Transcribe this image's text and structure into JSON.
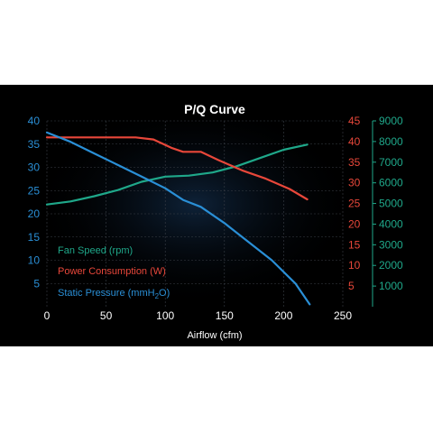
{
  "chart_data": {
    "type": "line",
    "title": "P/Q Curve",
    "xlabel": "Airflow (cfm)",
    "xlim": [
      0,
      250
    ],
    "x_ticks": [
      0,
      50,
      100,
      150,
      200,
      250
    ],
    "grid": true,
    "legend_position": "bottom-left",
    "axes": {
      "left": {
        "ylim": [
          0,
          40
        ],
        "ticks": [
          5,
          10,
          15,
          20,
          25,
          30,
          35,
          40
        ],
        "color": "#2a8fd6"
      },
      "mid": {
        "ylim": [
          0,
          45
        ],
        "ticks": [
          5,
          10,
          15,
          20,
          25,
          30,
          35,
          40,
          45
        ],
        "color": "#e8473a"
      },
      "right": {
        "ylim": [
          0,
          9000
        ],
        "ticks": [
          1000,
          2000,
          3000,
          4000,
          5000,
          6000,
          7000,
          8000,
          9000
        ],
        "color": "#1fa88a"
      }
    },
    "series": [
      {
        "name": "Fan Speed (rpm)",
        "axis": "right",
        "color": "#1fa88a",
        "x": [
          0,
          20,
          40,
          60,
          80,
          100,
          120,
          140,
          160,
          180,
          200,
          220
        ],
        "values": [
          4950,
          5100,
          5350,
          5650,
          6050,
          6300,
          6350,
          6500,
          6800,
          7200,
          7600,
          7850
        ]
      },
      {
        "name": "Power Consumption (W)",
        "axis": "mid",
        "color": "#e8473a",
        "x": [
          0,
          20,
          40,
          60,
          75,
          90,
          105,
          115,
          130,
          145,
          165,
          185,
          205,
          220
        ],
        "values": [
          41,
          41,
          41,
          41,
          41,
          40.5,
          38.5,
          37.5,
          37.5,
          35.5,
          33,
          31,
          28.5,
          26
        ]
      },
      {
        "name": "Static Pressure (mmH₂O)",
        "legend_base": "Static Pressure (mmH",
        "legend_sub": "2",
        "legend_end": "O)",
        "axis": "left",
        "color": "#2a8fd6",
        "x": [
          0,
          20,
          40,
          60,
          80,
          100,
          115,
          130,
          150,
          170,
          190,
          210,
          222
        ],
        "values": [
          37.5,
          35.5,
          33,
          30.5,
          28,
          25.5,
          23,
          21.5,
          18,
          14,
          10,
          5,
          0.5
        ]
      }
    ]
  }
}
